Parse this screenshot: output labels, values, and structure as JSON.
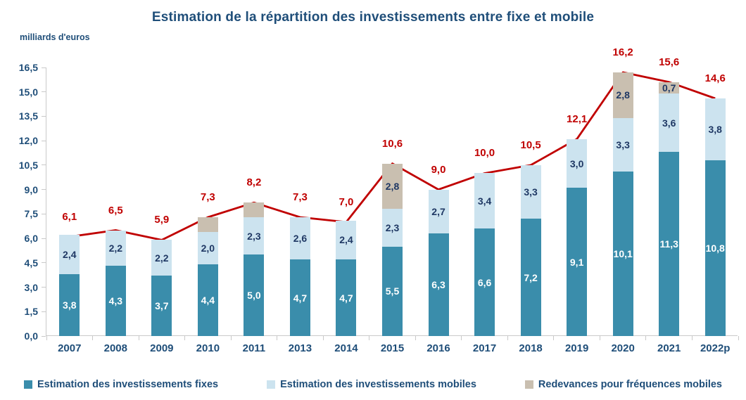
{
  "title": "Estimation de la répartition des investissements entre fixe et mobile",
  "units_label": "milliards d'euros",
  "colors": {
    "fixed_bar": "#3A8DAB",
    "mobile_bar": "#CCE3EF",
    "fees_bar": "#C9BFB0",
    "total_line": "#C00000",
    "heading_navy": "#1F4E79",
    "value_navy": "#1F3864",
    "value_white": "#FFFFFF",
    "axis_gray": "#C9C9C9"
  },
  "chart_data": {
    "type": "bar",
    "subtype": "stacked-bars-with-total-line",
    "title": "Estimation de la répartition des investissements entre fixe et mobile",
    "ylabel": "milliards d'euros",
    "xlabel": "",
    "ylim": [
      0,
      16.5
    ],
    "grid": false,
    "legend_position": "bottom",
    "y_tick_labels": [
      "0,0",
      "1,5",
      "3,0",
      "4,5",
      "6,0",
      "7,5",
      "9,0",
      "10,5",
      "12,0",
      "13,5",
      "15,0",
      "16,5"
    ],
    "categories": [
      "2007",
      "2008",
      "2009",
      "2010",
      "2011",
      "2013",
      "2014",
      "2015",
      "2016",
      "2017",
      "2018",
      "2019",
      "2020",
      "2021",
      "2022p"
    ],
    "series": [
      {
        "name": "Estimation des investissements fixes",
        "color": "#3A8DAB",
        "label_color": "#FFFFFF",
        "values": [
          3.8,
          4.3,
          3.7,
          4.4,
          5.0,
          4.7,
          4.7,
          5.5,
          6.3,
          6.6,
          7.2,
          9.1,
          10.1,
          11.3,
          10.8
        ],
        "labels": [
          "3,8",
          "4,3",
          "3,7",
          "4,4",
          "5,0",
          "4,7",
          "4,7",
          "5,5",
          "6,3",
          "6,6",
          "7,2",
          "9,1",
          "10,1",
          "11,3",
          "10,8"
        ]
      },
      {
        "name": "Estimation des investissements mobiles",
        "color": "#CCE3EF",
        "label_color": "#1F3864",
        "values": [
          2.4,
          2.2,
          2.2,
          2.0,
          2.3,
          2.6,
          2.4,
          2.3,
          2.7,
          3.4,
          3.3,
          3.0,
          3.3,
          3.6,
          3.8
        ],
        "labels": [
          "2,4",
          "2,2",
          "2,2",
          "2,0",
          "2,3",
          "2,6",
          "2,4",
          "2,3",
          "2,7",
          "3,4",
          "3,3",
          "3,0",
          "3,3",
          "3,6",
          "3,8"
        ]
      },
      {
        "name": "Redevances pour fréquences mobiles",
        "color": "#C9BFB0",
        "label_color": "#1F3864",
        "values": [
          0,
          0,
          0,
          0.9,
          0.9,
          0,
          0,
          2.8,
          0,
          0,
          0,
          0,
          2.8,
          0.7,
          0
        ],
        "labels": [
          null,
          null,
          null,
          null,
          null,
          null,
          null,
          "2,8",
          null,
          null,
          null,
          null,
          "2,8",
          "0,7",
          null
        ]
      }
    ],
    "total_line": {
      "name": "Total",
      "color": "#C00000",
      "label_color": "#C00000",
      "values": [
        6.1,
        6.5,
        5.9,
        7.3,
        8.2,
        7.3,
        7.0,
        10.6,
        9.0,
        10.0,
        10.5,
        12.1,
        16.2,
        15.6,
        14.6
      ],
      "labels": [
        "6,1",
        "6,5",
        "5,9",
        "7,3",
        "8,2",
        "7,3",
        "7,0",
        "10,6",
        "9,0",
        "10,0",
        "10,5",
        "12,1",
        "16,2",
        "15,6",
        "14,6"
      ]
    }
  }
}
